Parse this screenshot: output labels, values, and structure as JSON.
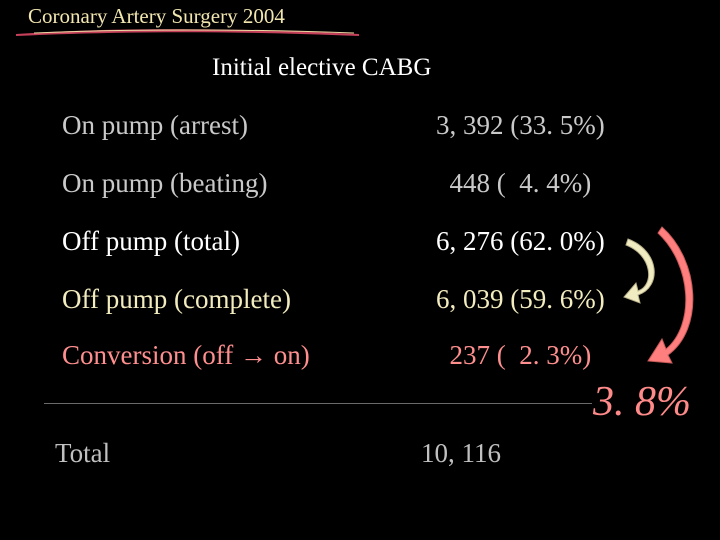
{
  "header": {
    "title": "Coronary Artery Surgery 2004",
    "subtitle": "Initial elective CABG"
  },
  "rows": [
    {
      "label": "On pump (arrest)",
      "value": "3, 392 (33. 5%)",
      "color": "#c9c9c9"
    },
    {
      "label": "On pump (beating)",
      "value": "  448 (  4. 4%)",
      "color": "#c9c9c9"
    },
    {
      "label": "Off pump (total)",
      "value": "6, 276 (62. 0%)",
      "color": "#ffffff"
    },
    {
      "label": "Off pump (complete)",
      "value": "6, 039 (59. 6%)",
      "color": "#f3ecbf"
    },
    {
      "label": "Conversion (off → on)",
      "value": "  237 (  2. 3%)",
      "color": "#ff8f8f"
    }
  ],
  "conversion_total": "3. 8%",
  "total": {
    "label": "Total",
    "value": "10, 116",
    "color": "#c0c0c0"
  },
  "colors": {
    "background": "#000000",
    "title": "#f2e6b0",
    "accent_red": "#ff7f7f",
    "accent_cream": "#f0ebc0"
  }
}
